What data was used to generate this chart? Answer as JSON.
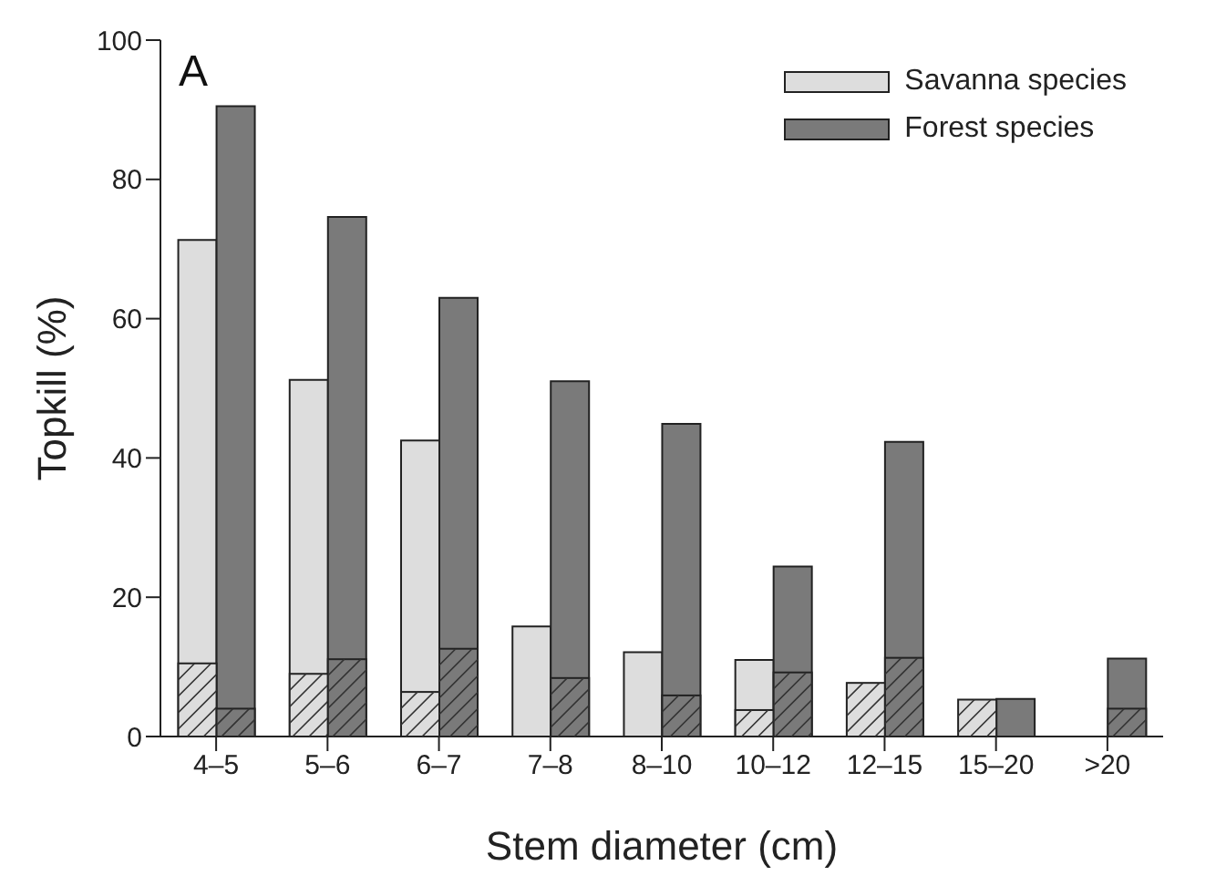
{
  "chart_data": [
    {
      "type": "bar",
      "xlabel": "Stem diameter (cm)",
      "ylabel": "Topkill (%)",
      "annotations": [
        "A"
      ],
      "categories": [
        "4–5",
        "5–6",
        "6–7",
        "7–8",
        "8–10",
        "10–12",
        "12–15",
        "15–20",
        ">20"
      ],
      "series": [
        {
          "name": "Savanna species",
          "color": "#dddddd",
          "values": [
            71.3,
            51.2,
            42.5,
            15.8,
            12.1,
            11.0,
            null,
            null,
            null
          ]
        },
        {
          "name": "Forest species",
          "color": "#7a7a7a",
          "values": [
            90.5,
            74.6,
            63.0,
            51.0,
            44.9,
            24.4,
            42.3,
            5.4,
            11.2
          ]
        }
      ],
      "ylim": [
        0,
        100
      ],
      "yticks": [
        0,
        20,
        40,
        60,
        80,
        100
      ],
      "legend": "top right"
    },
    {
      "type": "bar",
      "categories": [
        null,
        null,
        null,
        null,
        null,
        null,
        null,
        null,
        null
      ],
      "series": [
        {
          "color": "#dddddd",
          "values": [
            10.5,
            9.0,
            6.4,
            null,
            null,
            3.8,
            7.7,
            5.3,
            null
          ]
        },
        {
          "color": "#7a7a7a",
          "values": [
            4.0,
            11.1,
            12.6,
            8.4,
            5.9,
            9.2,
            11.3,
            null,
            4.0
          ]
        }
      ],
      "ylim": [
        0,
        100
      ],
      "tick_labels": false
    }
  ]
}
